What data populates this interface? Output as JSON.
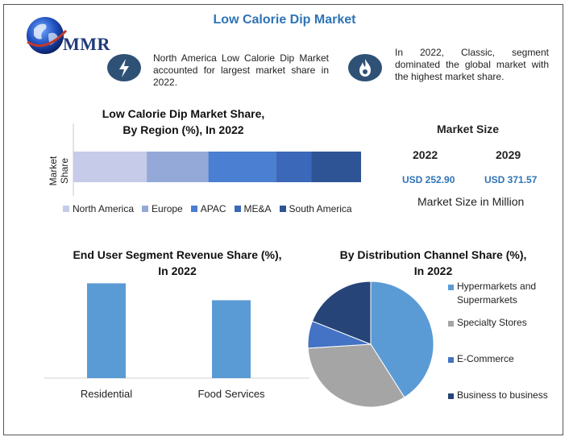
{
  "header": {
    "title": "Low Calorie Dip Market",
    "logo_text": "MMR"
  },
  "info": {
    "left_text": "North America Low Calorie Dip Market accounted for largest market share in 2022.",
    "right_text": "In 2022, Classic, segment dominated the global market with the highest market share.",
    "left_icon": "lightning-icon",
    "right_icon": "flame-icon"
  },
  "market_size": {
    "title": "Market Size",
    "year1": "2022",
    "year2": "2029",
    "value1": "USD 252.90",
    "value2": "USD 371.57",
    "caption": "Market Size in Million"
  },
  "chart_data": [
    {
      "type": "bar",
      "orientation": "horizontal-stacked",
      "title": "Low Calorie Dip Market Share, By Region (%), In 2022",
      "title_lines": [
        "Low Calorie Dip Market Share,",
        "By Region (%), In 2022"
      ],
      "ylabel": "Market Share",
      "series": [
        {
          "name": "North America",
          "values": [
            25
          ],
          "color": "#c5cbe8"
        },
        {
          "name": "Europe",
          "values": [
            21
          ],
          "color": "#94a9d8"
        },
        {
          "name": "APAC",
          "values": [
            23
          ],
          "color": "#4a7fd1"
        },
        {
          "name": "ME&A",
          "values": [
            12
          ],
          "color": "#3b68b8"
        },
        {
          "name": "South America",
          "values": [
            17
          ],
          "color": "#2f5496"
        }
      ],
      "xlim": [
        0,
        100
      ],
      "legend": "bottom",
      "grid": false
    },
    {
      "type": "bar",
      "title": "End User Segment Revenue Share (%), In 2022",
      "title_lines": [
        "End User Segment Revenue Share (%),",
        "In 2022"
      ],
      "categories": [
        "Residential",
        "Food Services"
      ],
      "values": [
        56,
        46
      ],
      "ylim": [
        0,
        60
      ],
      "color": "#5b9bd5",
      "grid": false
    },
    {
      "type": "pie",
      "title": "By Distribution Channel Share (%), In 2022",
      "title_lines": [
        "By Distribution Channel Share (%),",
        "In 2022"
      ],
      "categories": [
        "Hypermarkets and Supermarkets",
        "Specialty Stores",
        "E-Commerce",
        "Business to business"
      ],
      "category_lines": [
        [
          "Hypermarkets and",
          "Supermarkets"
        ],
        [
          "Specialty Stores"
        ],
        [
          "E-Commerce"
        ],
        [
          "Business to business"
        ]
      ],
      "values": [
        41,
        33,
        7,
        19
      ],
      "colors": [
        "#5b9bd5",
        "#a5a5a5",
        "#4472c4",
        "#264478"
      ],
      "legend": "right"
    }
  ]
}
